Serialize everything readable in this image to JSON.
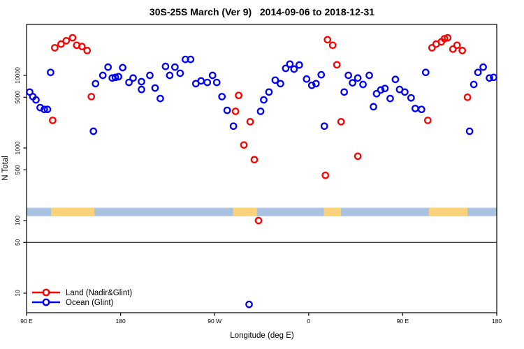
{
  "chart_data": {
    "type": "scatter",
    "title": "30S-25S March (Ver 9)   2014-09-06 to 2018-12-31",
    "xlabel": "Longitude (deg E)",
    "ylabel": "N Total",
    "x_axis": {
      "range_continuous_deg": [
        90,
        540
      ],
      "ticks": [
        {
          "value": 90,
          "label": "90 E"
        },
        {
          "value": 180,
          "label": "180"
        },
        {
          "value": 270,
          "label": "90 W"
        },
        {
          "value": 360,
          "label": "0"
        },
        {
          "value": 450,
          "label": "90 E"
        },
        {
          "value": 540,
          "label": "180"
        }
      ]
    },
    "y_axis": {
      "scale": "log",
      "range": [
        5,
        50000
      ],
      "ticks": [
        {
          "value": 10,
          "label": "10"
        },
        {
          "value": 50,
          "label": "50"
        },
        {
          "value": 100,
          "label": "100"
        },
        {
          "value": 500,
          "label": "500"
        },
        {
          "value": 1000,
          "label": "1000"
        },
        {
          "value": 5000,
          "label": "5000"
        },
        {
          "value": 10000,
          "label": "10000"
        }
      ]
    },
    "reference_line_y": 50,
    "land_ocean_strip": {
      "y_value_from": 115,
      "y_value_to": 150,
      "ocean_color": "#A9C2E2",
      "land_color": "#FBD27C",
      "land_segments_deg": [
        [
          113.5,
          155
        ],
        [
          287.5,
          310.5
        ],
        [
          374.5,
          391
        ],
        [
          475,
          512
        ]
      ]
    },
    "legend_position": "bottom-left",
    "series": [
      {
        "name": "Land (Nadir&Glint)",
        "color": "#FF0000",
        "marker": "open-circle",
        "points": [
          [
            115,
            2400
          ],
          [
            117,
            24000
          ],
          [
            123,
            27000
          ],
          [
            128,
            30000
          ],
          [
            134,
            33000
          ],
          [
            138,
            26000
          ],
          [
            143,
            25000
          ],
          [
            148,
            22000
          ],
          [
            152,
            5100
          ],
          [
            290,
            3200
          ],
          [
            293,
            5300
          ],
          [
            298,
            1100
          ],
          [
            304,
            2300
          ],
          [
            308,
            690
          ],
          [
            312,
            100
          ],
          [
            376,
            420
          ],
          [
            378,
            31000
          ],
          [
            383,
            26000
          ],
          [
            387,
            14000
          ],
          [
            391,
            2300
          ],
          [
            407,
            770
          ],
          [
            474,
            2400
          ],
          [
            478,
            24000
          ],
          [
            482,
            27000
          ],
          [
            487,
            29000
          ],
          [
            490,
            32000
          ],
          [
            493,
            33000
          ],
          [
            498,
            23000
          ],
          [
            502,
            26000
          ],
          [
            507,
            22000
          ],
          [
            512,
            5000
          ]
        ]
      },
      {
        "name": "Ocean (Glint)",
        "color": "#0000FF",
        "marker": "open-circle",
        "points": [
          [
            93,
            5900
          ],
          [
            96,
            5100
          ],
          [
            99,
            4600
          ],
          [
            103,
            3600
          ],
          [
            107,
            3400
          ],
          [
            110,
            3400
          ],
          [
            113,
            11000
          ],
          [
            154,
            1700
          ],
          [
            156,
            7700
          ],
          [
            163,
            10000
          ],
          [
            168,
            13000
          ],
          [
            172,
            9200
          ],
          [
            175,
            9400
          ],
          [
            178,
            9600
          ],
          [
            182,
            12800
          ],
          [
            188,
            8000
          ],
          [
            192,
            9200
          ],
          [
            200,
            8200
          ],
          [
            200,
            6400
          ],
          [
            208,
            10000
          ],
          [
            213,
            6700
          ],
          [
            218,
            4800
          ],
          [
            223,
            13300
          ],
          [
            227,
            10000
          ],
          [
            232,
            13000
          ],
          [
            237,
            10700
          ],
          [
            242,
            16600
          ],
          [
            247,
            16600
          ],
          [
            252,
            7700
          ],
          [
            257,
            8400
          ],
          [
            263,
            8000
          ],
          [
            268,
            10000
          ],
          [
            272,
            8000
          ],
          [
            277,
            5100
          ],
          [
            282,
            3300
          ],
          [
            288,
            2000
          ],
          [
            303,
            7
          ],
          [
            314,
            3200
          ],
          [
            317,
            4600
          ],
          [
            322,
            5900
          ],
          [
            328,
            8600
          ],
          [
            333,
            7700
          ],
          [
            338,
            12500
          ],
          [
            342,
            14300
          ],
          [
            346,
            12200
          ],
          [
            351,
            13900
          ],
          [
            358,
            8900
          ],
          [
            363,
            7300
          ],
          [
            367,
            7700
          ],
          [
            372,
            10200
          ],
          [
            375,
            2000
          ],
          [
            394,
            5900
          ],
          [
            398,
            10000
          ],
          [
            402,
            7900
          ],
          [
            407,
            9200
          ],
          [
            412,
            7500
          ],
          [
            418,
            10000
          ],
          [
            422,
            3700
          ],
          [
            425,
            5600
          ],
          [
            429,
            6300
          ],
          [
            433,
            6600
          ],
          [
            438,
            4800
          ],
          [
            443,
            8800
          ],
          [
            447,
            6400
          ],
          [
            452,
            5900
          ],
          [
            458,
            4900
          ],
          [
            462,
            3500
          ],
          [
            468,
            3400
          ],
          [
            472,
            11000
          ],
          [
            514,
            1700
          ],
          [
            518,
            7500
          ],
          [
            522,
            11000
          ],
          [
            527,
            13000
          ],
          [
            533,
            9200
          ],
          [
            537,
            9400
          ]
        ]
      }
    ]
  }
}
